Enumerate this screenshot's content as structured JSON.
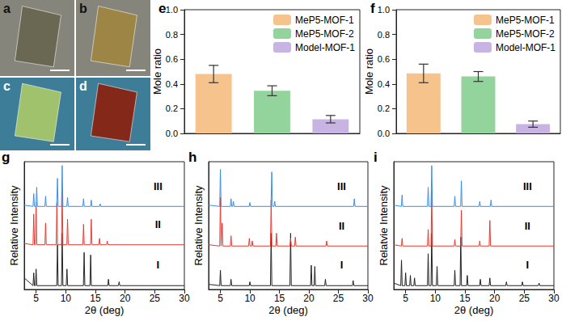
{
  "photos": [
    {
      "title": "a"
    },
    {
      "title": "b"
    },
    {
      "title": "c"
    },
    {
      "title": "d"
    }
  ],
  "chart_data": [
    {
      "type": "bar",
      "title": "e",
      "ylabel": "Mole ratio",
      "categories": [
        null,
        null,
        null
      ],
      "series": [
        {
          "name": "MeP5-MOF-1",
          "color": "#F7C38D",
          "values": [
            0.48,
            null,
            null
          ],
          "errors": [
            0.07,
            null,
            null
          ]
        },
        {
          "name": "MeP5-MOF-2",
          "color": "#93D49C",
          "values": [
            null,
            0.345,
            null
          ],
          "errors": [
            null,
            0.04,
            null
          ]
        },
        {
          "name": "Model-MOF-1",
          "color": "#C8B4E3",
          "values": [
            null,
            null,
            0.115
          ],
          "errors": [
            null,
            null,
            0.03
          ]
        }
      ],
      "ylim": [
        0,
        1
      ],
      "yticks": [
        {
          "value": 0,
          "label": "0.0"
        },
        0.2,
        0.4,
        0.6,
        0.8,
        {
          "value": 1,
          "label": "1.0"
        }
      ],
      "legend": "upper right",
      "tick_labels": "y"
    },
    {
      "type": "bar",
      "title": "f",
      "ylabel": "Mole ratio",
      "categories": [
        null,
        null,
        null
      ],
      "series": [
        {
          "name": "MeP5-MOF-1",
          "color": "#F7C38D",
          "values": [
            0.485,
            null,
            null
          ],
          "errors": [
            0.075,
            null,
            null
          ]
        },
        {
          "name": "MeP5-MOF-2",
          "color": "#93D49C",
          "values": [
            null,
            0.46,
            null
          ],
          "errors": [
            null,
            0.04,
            null
          ]
        },
        {
          "name": "Model-MOF-1",
          "color": "#C8B4E3",
          "values": [
            null,
            null,
            0.075
          ],
          "errors": [
            null,
            null,
            0.025
          ]
        }
      ],
      "ylim": [
        0,
        1
      ],
      "yticks": [
        {
          "value": 0,
          "label": "0.0"
        },
        0.2,
        0.4,
        0.6,
        0.8,
        {
          "value": 1,
          "label": "1.0"
        }
      ],
      "legend": "upper right",
      "tick_labels": "y"
    },
    {
      "type": "line",
      "title": "g",
      "xlabel": "2θ (deg)",
      "ylabel": "Relative Intensity",
      "xlim": [
        3,
        30
      ],
      "xticks": [
        5,
        10,
        15,
        20,
        25,
        30
      ],
      "ylim": [
        0,
        10
      ],
      "tick_labels": "x",
      "series": [
        {
          "name": "I",
          "color": "#222222",
          "x": [
            3,
            4.48,
            4.6,
            4.72,
            4.88,
            5.0,
            5.12,
            8.48,
            8.6,
            8.72,
            9.28,
            9.4,
            9.52,
            10.08,
            10.2,
            10.32,
            12.98,
            13.1,
            13.22,
            14.08,
            14.2,
            14.32,
            17.08,
            17.2,
            17.32,
            18.88,
            19.0,
            19.12,
            30
          ],
          "values": [
            0.9,
            0.3,
            1.3,
            0.3,
            0.3,
            1.6,
            0.3,
            0.3,
            3.5,
            0.3,
            0.3,
            4.4,
            0.3,
            0.3,
            1.6,
            0.3,
            0.3,
            2.9,
            0.3,
            0.3,
            2.7,
            0.3,
            0.3,
            0.8,
            0.3,
            0.3,
            0.6,
            0.3,
            0.3
          ]
        },
        {
          "name": "II",
          "color": "#E63A31",
          "x": [
            3,
            4.48,
            4.6,
            4.72,
            4.88,
            5.0,
            5.12,
            6.48,
            6.6,
            6.72,
            8.38,
            8.5,
            8.62,
            9.28,
            9.4,
            9.52,
            10.18,
            10.3,
            10.42,
            12.88,
            13.0,
            13.12,
            14.18,
            14.3,
            14.42,
            15.58,
            15.7,
            15.82,
            16.88,
            17.0,
            17.12,
            30
          ],
          "values": [
            3.6,
            3.5,
            5.9,
            3.5,
            3.5,
            6.8,
            3.5,
            3.5,
            5.2,
            3.5,
            3.5,
            6.8,
            3.5,
            3.5,
            7.8,
            3.5,
            3.5,
            5.5,
            3.5,
            3.5,
            5.1,
            3.5,
            3.5,
            5.5,
            3.5,
            3.5,
            4.0,
            3.5,
            3.5,
            3.8,
            3.5,
            3.5
          ]
        },
        {
          "name": "III",
          "color": "#3A8EE6",
          "x": [
            3,
            4.48,
            4.6,
            4.72,
            4.98,
            5.1,
            5.22,
            6.48,
            6.6,
            6.72,
            8.48,
            8.6,
            8.72,
            9.28,
            9.4,
            9.52,
            10.18,
            10.3,
            10.42,
            12.88,
            13.0,
            13.12,
            14.18,
            14.3,
            14.42,
            15.68,
            15.8,
            15.92,
            30
          ],
          "values": [
            6.6,
            6.5,
            7.5,
            6.5,
            6.5,
            8.0,
            6.5,
            6.5,
            7.3,
            6.5,
            6.5,
            8.7,
            6.5,
            6.5,
            9.7,
            6.5,
            6.5,
            7.2,
            6.5,
            6.5,
            7.1,
            6.5,
            6.5,
            7.0,
            6.5,
            6.5,
            6.7,
            6.5,
            6.5
          ]
        }
      ]
    },
    {
      "type": "line",
      "title": "h",
      "xlabel": "2θ (deg)",
      "ylabel": "Relative Intensity",
      "xlim": [
        3,
        30
      ],
      "xticks": [
        5,
        10,
        15,
        20,
        25,
        30
      ],
      "ylim": [
        0,
        10
      ],
      "tick_labels": "x",
      "series": [
        {
          "name": "I",
          "color": "#222222",
          "x": [
            3,
            4.88,
            5.0,
            5.12,
            6.68,
            6.8,
            6.92,
            9.88,
            10.0,
            10.12,
            13.48,
            13.6,
            13.72,
            16.78,
            16.9,
            17.02,
            20.28,
            20.4,
            20.52,
            20.88,
            21.0,
            21.12,
            22.68,
            22.8,
            22.92,
            27.38,
            27.5,
            27.62,
            30
          ],
          "values": [
            0.4,
            0.3,
            1.5,
            0.3,
            0.3,
            0.8,
            0.3,
            0.3,
            0.6,
            0.3,
            0.3,
            4.4,
            0.3,
            0.3,
            4.4,
            0.3,
            0.3,
            1.9,
            0.3,
            0.3,
            1.8,
            0.3,
            0.3,
            0.8,
            0.3,
            0.3,
            0.7,
            0.3,
            0.3
          ]
        },
        {
          "name": "II",
          "color": "#E63A31",
          "x": [
            3,
            4.88,
            5.0,
            5.12,
            5.18,
            5.3,
            5.42,
            6.68,
            6.8,
            6.92,
            9.78,
            9.9,
            10.02,
            10.28,
            10.4,
            10.52,
            13.48,
            13.6,
            13.72,
            14.38,
            14.5,
            14.62,
            16.78,
            16.9,
            17.02,
            17.58,
            17.7,
            17.82,
            22.88,
            23.0,
            23.12,
            30
          ],
          "values": [
            3.5,
            3.4,
            7.2,
            3.4,
            3.4,
            5.2,
            3.4,
            3.4,
            4.2,
            3.4,
            3.4,
            4.0,
            3.4,
            3.4,
            3.8,
            3.4,
            3.4,
            7.0,
            3.4,
            3.4,
            4.4,
            3.4,
            3.4,
            4.0,
            3.4,
            3.4,
            4.1,
            3.4,
            3.4,
            3.8,
            3.4,
            3.4
          ]
        },
        {
          "name": "III",
          "color": "#3A8EE6",
          "x": [
            3,
            4.88,
            5.0,
            5.12,
            6.68,
            6.8,
            6.92,
            7.08,
            7.2,
            7.32,
            9.88,
            10.0,
            10.12,
            13.58,
            13.7,
            13.82,
            14.08,
            14.2,
            14.32,
            27.58,
            27.7,
            27.82,
            30
          ],
          "values": [
            6.6,
            6.5,
            9.4,
            6.5,
            6.5,
            7.1,
            6.5,
            6.5,
            6.9,
            6.5,
            6.5,
            6.8,
            6.5,
            6.5,
            9.2,
            6.5,
            6.5,
            6.9,
            6.5,
            6.5,
            7.1,
            6.5,
            6.5
          ]
        }
      ]
    },
    {
      "type": "line",
      "title": "i",
      "xlabel": "2θ (deg)",
      "ylabel": "Relatvie Intensity",
      "xlim": [
        3,
        30
      ],
      "xticks": [
        5,
        10,
        15,
        20,
        25,
        30
      ],
      "ylim": [
        0,
        10
      ],
      "tick_labels": "x",
      "series": [
        {
          "name": "I",
          "color": "#222222",
          "x": [
            3,
            4.18,
            4.3,
            4.42,
            4.88,
            5.0,
            5.12,
            5.68,
            5.8,
            5.92,
            6.38,
            6.5,
            6.62,
            8.68,
            8.8,
            8.92,
            9.28,
            9.4,
            9.52,
            10.18,
            10.3,
            10.42,
            13.18,
            13.3,
            13.42,
            14.18,
            14.3,
            14.42,
            15.28,
            15.4,
            15.52,
            17.48,
            17.6,
            17.72,
            19.08,
            19.2,
            19.32,
            21.88,
            22.0,
            22.12,
            24.58,
            24.7,
            24.82,
            27.38,
            27.5,
            27.62,
            30
          ],
          "values": [
            0.5,
            0.3,
            2.3,
            0.3,
            0.3,
            1.3,
            0.3,
            0.3,
            1.1,
            0.3,
            0.3,
            0.9,
            0.3,
            0.3,
            2.8,
            0.3,
            0.3,
            4.4,
            0.3,
            0.3,
            1.8,
            0.3,
            0.3,
            1.5,
            0.3,
            0.3,
            4.1,
            0.3,
            0.3,
            1.1,
            0.3,
            0.3,
            0.8,
            0.3,
            0.3,
            0.9,
            0.3,
            0.3,
            0.6,
            0.3,
            0.3,
            0.6,
            0.3,
            0.3,
            0.5,
            0.3,
            0.3
          ]
        },
        {
          "name": "II",
          "color": "#E63A31",
          "x": [
            3,
            4.28,
            4.4,
            4.52,
            8.68,
            8.8,
            8.92,
            9.28,
            9.4,
            9.52,
            13.18,
            13.3,
            13.42,
            14.28,
            14.4,
            14.52,
            17.38,
            17.5,
            17.62,
            19.08,
            19.2,
            19.32,
            30
          ],
          "values": [
            3.5,
            3.4,
            4.0,
            3.4,
            3.4,
            4.7,
            3.4,
            3.4,
            7.7,
            3.4,
            3.4,
            3.9,
            3.4,
            3.4,
            6.2,
            3.4,
            3.4,
            3.8,
            3.4,
            3.4,
            5.4,
            3.4,
            3.4
          ]
        },
        {
          "name": "III",
          "color": "#3A8EE6",
          "x": [
            3,
            4.28,
            4.4,
            4.52,
            8.68,
            8.8,
            8.92,
            9.28,
            9.4,
            9.52,
            13.18,
            13.3,
            13.42,
            14.28,
            14.4,
            14.52,
            17.38,
            17.5,
            17.62,
            19.28,
            19.4,
            19.52,
            30
          ],
          "values": [
            6.6,
            6.5,
            7.4,
            6.5,
            6.5,
            8.0,
            6.5,
            6.5,
            9.7,
            6.5,
            6.5,
            7.3,
            6.5,
            6.5,
            8.5,
            6.5,
            6.5,
            6.9,
            6.5,
            6.5,
            7.0,
            6.5,
            6.5
          ]
        }
      ]
    }
  ]
}
